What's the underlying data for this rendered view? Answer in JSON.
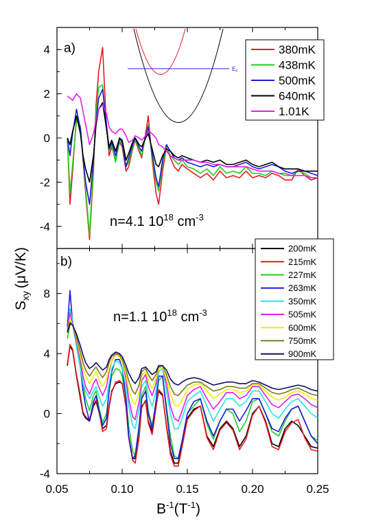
{
  "figure": {
    "ylabel_main": "S",
    "ylabel_sub": "xy",
    "ylabel_unit": "(μV/K)",
    "xlabel_main": "B",
    "xlabel_sup": "-1",
    "xlabel_unit_pre": "(T",
    "xlabel_unit_sup": "-1",
    "xlabel_unit_post": ")",
    "x_ticks": [
      "0.05",
      "0.10",
      "0.15",
      "0.20",
      "0.25"
    ]
  },
  "chart_data": [
    {
      "type": "line",
      "panel_label": "a)",
      "annotation": {
        "prefix": "n=4.1 10",
        "sup": "18",
        "unit": " cm",
        "unit_sup": "-3"
      },
      "inset": {
        "label": "E",
        "label_sub": "F"
      },
      "xlim": [
        0.05,
        0.25
      ],
      "ylim": [
        -5,
        5
      ],
      "y_ticks": [
        "-4",
        "-2",
        "0",
        "2",
        "4"
      ],
      "x": [
        0.058,
        0.06,
        0.062,
        0.065,
        0.068,
        0.07,
        0.072,
        0.075,
        0.078,
        0.08,
        0.082,
        0.085,
        0.088,
        0.09,
        0.092,
        0.095,
        0.098,
        0.1,
        0.103,
        0.105,
        0.108,
        0.11,
        0.113,
        0.115,
        0.118,
        0.12,
        0.123,
        0.126,
        0.128,
        0.131,
        0.134,
        0.137,
        0.14,
        0.143,
        0.146,
        0.15,
        0.155,
        0.16,
        0.165,
        0.17,
        0.175,
        0.18,
        0.185,
        0.19,
        0.195,
        0.2,
        0.205,
        0.21,
        0.215,
        0.22,
        0.225,
        0.23,
        0.235,
        0.24,
        0.245,
        0.25
      ],
      "series": [
        {
          "name": "380mK",
          "color": "#e8191e",
          "values": [
            0.0,
            -3.0,
            -1.5,
            1.0,
            0.5,
            -1.0,
            -2.5,
            -4.6,
            -1.5,
            1.5,
            3.0,
            4.1,
            0.5,
            -0.8,
            -0.4,
            -1.0,
            -0.2,
            -0.4,
            -1.5,
            -1.3,
            -0.5,
            -0.1,
            -0.6,
            -0.9,
            0.2,
            1.0,
            -1.0,
            -2.5,
            -3.0,
            -1.5,
            -0.4,
            -0.9,
            -1.3,
            -1.5,
            -1.2,
            -1.4,
            -1.6,
            -1.8,
            -1.6,
            -1.9,
            -1.5,
            -1.8,
            -1.7,
            -1.8,
            -1.5,
            -1.8,
            -1.7,
            -1.8,
            -1.6,
            -1.7,
            -1.9,
            -1.9,
            -1.4,
            -1.7,
            -1.9,
            -1.8
          ]
        },
        {
          "name": "438mK",
          "color": "#22cc22",
          "values": [
            0.0,
            -2.5,
            -1.2,
            0.8,
            0.5,
            -0.9,
            -2.3,
            -4.4,
            -1.2,
            1.2,
            2.3,
            2.4,
            0.5,
            -0.6,
            -0.3,
            -1.1,
            -0.1,
            -0.3,
            -1.3,
            -1.1,
            -0.4,
            -0.1,
            -0.5,
            -0.8,
            0.1,
            0.6,
            -0.9,
            -2.0,
            -2.4,
            -1.2,
            -0.4,
            -0.8,
            -1.0,
            -1.2,
            -1.0,
            -1.3,
            -1.4,
            -1.6,
            -1.4,
            -1.7,
            -1.3,
            -1.6,
            -1.5,
            -1.6,
            -1.3,
            -1.6,
            -1.6,
            -1.7,
            -1.5,
            -1.6,
            -1.7,
            -1.7,
            -1.5,
            -1.6,
            -1.8,
            -1.8
          ]
        },
        {
          "name": "500mK",
          "color": "#1a1ad9",
          "values": [
            0.0,
            -0.8,
            0.2,
            1.3,
            0.4,
            -0.9,
            -2.0,
            -3.0,
            -1.0,
            0.8,
            1.8,
            2.2,
            0.6,
            -0.5,
            -0.2,
            -0.8,
            0.0,
            -0.2,
            -1.3,
            -0.9,
            -0.3,
            0.0,
            -0.4,
            -0.6,
            0.1,
            0.5,
            -0.7,
            -1.8,
            -2.2,
            -1.0,
            -0.3,
            -0.6,
            -0.9,
            -1.0,
            -0.9,
            -1.1,
            -1.2,
            -1.3,
            -1.2,
            -1.3,
            -1.2,
            -1.3,
            -1.3,
            -1.2,
            -1.1,
            -1.3,
            -1.4,
            -1.3,
            -1.2,
            -1.3,
            -1.5,
            -1.6,
            -1.5,
            -1.5,
            -1.6,
            -1.7
          ]
        },
        {
          "name": "640mK",
          "color": "#000000",
          "values": [
            0.0,
            -0.3,
            0.3,
            1.0,
            0.2,
            -0.8,
            -1.4,
            -2.0,
            -0.8,
            0.6,
            1.3,
            1.6,
            0.4,
            -0.4,
            -0.1,
            -0.6,
            0.0,
            -0.1,
            -1.0,
            -0.7,
            -0.2,
            0.0,
            -0.3,
            -0.4,
            0.0,
            0.2,
            -0.5,
            -1.2,
            -1.3,
            -0.8,
            -0.5,
            -0.6,
            -0.8,
            -0.9,
            -0.8,
            -0.9,
            -1.0,
            -1.1,
            -1.0,
            -1.1,
            -1.0,
            -1.2,
            -1.2,
            -1.1,
            -1.0,
            -1.2,
            -1.3,
            -1.2,
            -1.1,
            -1.3,
            -1.4,
            -1.4,
            -1.4,
            -1.5,
            -1.5,
            -1.5
          ]
        },
        {
          "name": "1.01K",
          "color": "#e11fe1",
          "values": [
            1.9,
            1.8,
            1.7,
            2.0,
            1.8,
            1.2,
            0.6,
            -0.3,
            0.2,
            0.8,
            1.3,
            1.5,
            1.1,
            0.5,
            0.3,
            0.2,
            0.4,
            0.4,
            0.1,
            -0.2,
            -0.1,
            0.1,
            0.0,
            -0.1,
            0.1,
            0.3,
            0.2,
            0.0,
            -0.3,
            -0.4,
            -0.6,
            -0.8,
            -0.9,
            -1.0,
            -1.0,
            -1.0,
            -1.0,
            -1.1,
            -1.1,
            -1.2,
            -1.2,
            -1.3,
            -1.3,
            -1.3,
            -1.3,
            -1.4,
            -1.5,
            -1.5,
            -1.5,
            -1.6,
            -1.6,
            -1.7,
            -1.7,
            -1.7,
            -1.8,
            -1.8
          ]
        }
      ]
    },
    {
      "type": "line",
      "panel_label": "b)",
      "annotation": {
        "prefix": "n=1.1 10",
        "sup": "18",
        "unit": " cm",
        "unit_sup": "-3"
      },
      "xlim": [
        0.05,
        0.25
      ],
      "ylim": [
        -4,
        11
      ],
      "y_ticks": [
        "-4",
        "0",
        "4",
        "8"
      ],
      "x": [
        0.058,
        0.06,
        0.062,
        0.065,
        0.068,
        0.07,
        0.072,
        0.075,
        0.078,
        0.08,
        0.082,
        0.085,
        0.088,
        0.09,
        0.092,
        0.095,
        0.098,
        0.1,
        0.103,
        0.105,
        0.108,
        0.11,
        0.113,
        0.115,
        0.118,
        0.12,
        0.123,
        0.126,
        0.128,
        0.131,
        0.134,
        0.137,
        0.14,
        0.143,
        0.146,
        0.15,
        0.155,
        0.16,
        0.165,
        0.17,
        0.175,
        0.18,
        0.185,
        0.19,
        0.195,
        0.2,
        0.205,
        0.21,
        0.215,
        0.22,
        0.225,
        0.23,
        0.235,
        0.24,
        0.245,
        0.25
      ],
      "series": [
        {
          "name": "200mK",
          "color": "#000000",
          "values": [
            3.2,
            4.5,
            4.2,
            2.5,
            1.0,
            0.0,
            -0.3,
            -0.5,
            0.5,
            0.8,
            0.2,
            -1.0,
            -0.8,
            0.5,
            1.5,
            2.0,
            2.1,
            2.0,
            0.5,
            -1.5,
            -3.0,
            -3.0,
            -1.5,
            0.5,
            0.8,
            -0.5,
            -1.2,
            0.5,
            1.5,
            1.2,
            -0.8,
            -2.5,
            -3.3,
            -3.3,
            -2.0,
            -0.3,
            0.3,
            0.5,
            -1.5,
            -2.2,
            -1.0,
            -0.5,
            -1.0,
            -2.2,
            -1.5,
            0.0,
            0.5,
            -0.5,
            -2.0,
            -2.2,
            -1.0,
            -0.5,
            -0.8,
            -1.5,
            -2.2,
            -2.3
          ]
        },
        {
          "name": "215mK",
          "color": "#e8191e",
          "values": [
            3.3,
            4.6,
            4.3,
            2.6,
            1.2,
            0.1,
            -0.2,
            -0.4,
            0.6,
            0.9,
            0.3,
            -1.2,
            -1.0,
            0.4,
            1.4,
            2.1,
            2.2,
            2.0,
            0.4,
            -1.6,
            -3.1,
            -3.3,
            -1.6,
            0.4,
            0.9,
            -0.6,
            -1.4,
            0.4,
            1.6,
            1.3,
            -0.9,
            -2.7,
            -3.5,
            -3.5,
            -2.2,
            -0.4,
            0.2,
            0.5,
            -1.6,
            -2.4,
            -1.1,
            -0.6,
            -1.1,
            -2.4,
            -1.7,
            -0.1,
            0.5,
            -0.6,
            -2.2,
            -2.4,
            -1.2,
            -0.6,
            -0.4,
            -1.6,
            -2.4,
            -2.5
          ]
        },
        {
          "name": "227mK",
          "color": "#22cc22",
          "values": [
            5.0,
            5.9,
            6.0,
            5.0,
            3.5,
            2.0,
            1.0,
            0.2,
            1.2,
            1.5,
            0.5,
            -0.6,
            0.0,
            1.5,
            2.5,
            3.0,
            2.9,
            2.5,
            1.0,
            -0.8,
            -2.5,
            -2.8,
            -1.0,
            1.2,
            1.8,
            0.2,
            -0.8,
            0.8,
            2.2,
            2.5,
            0.5,
            -1.5,
            -2.8,
            -3.0,
            -1.8,
            0.0,
            0.5,
            1.0,
            -0.7,
            -1.7,
            -0.5,
            0.3,
            0.0,
            -1.2,
            -0.5,
            0.8,
            1.0,
            0.0,
            -1.2,
            -1.5,
            -0.5,
            0.3,
            0.5,
            -0.5,
            -1.5,
            -1.8
          ]
        },
        {
          "name": "263mK",
          "color": "#1a1ad9",
          "values": [
            5.8,
            8.2,
            6.0,
            4.5,
            3.0,
            1.5,
            0.5,
            -0.5,
            0.8,
            1.2,
            0.3,
            -0.8,
            -0.3,
            1.5,
            2.8,
            3.6,
            3.6,
            3.0,
            1.0,
            -1.5,
            -3.0,
            -2.8,
            -0.8,
            1.0,
            1.5,
            0.0,
            -1.0,
            0.8,
            2.5,
            2.5,
            0.2,
            -2.0,
            -3.0,
            -3.0,
            -1.8,
            0.0,
            0.8,
            1.0,
            -0.5,
            -1.5,
            -0.5,
            0.3,
            0.3,
            -0.5,
            0.2,
            1.0,
            1.0,
            0.0,
            -1.0,
            -1.2,
            -0.3,
            0.3,
            0.5,
            -0.5,
            -1.5,
            -2.0
          ]
        },
        {
          "name": "350mK",
          "color": "#22e5e5",
          "values": [
            5.5,
            7.0,
            6.2,
            4.5,
            3.0,
            2.0,
            1.5,
            1.0,
            1.5,
            1.8,
            1.2,
            0.5,
            1.0,
            2.0,
            3.0,
            3.5,
            3.4,
            3.0,
            1.8,
            0.5,
            -0.8,
            -1.0,
            0.3,
            1.8,
            2.2,
            1.2,
            0.5,
            1.5,
            2.8,
            3.0,
            1.5,
            0.0,
            -1.0,
            -1.0,
            -0.3,
            0.8,
            1.2,
            1.5,
            0.5,
            -0.5,
            0.3,
            1.0,
            1.0,
            0.5,
            0.8,
            1.5,
            1.5,
            0.8,
            0.0,
            -0.3,
            0.3,
            0.8,
            1.0,
            0.5,
            0.0,
            -0.3
          ]
        },
        {
          "name": "505mK",
          "color": "#e11fe1",
          "values": [
            5.6,
            6.7,
            6.0,
            4.8,
            3.5,
            2.5,
            1.8,
            1.3,
            2.0,
            2.3,
            1.8,
            1.2,
            1.8,
            2.8,
            3.5,
            4.0,
            3.9,
            3.5,
            2.3,
            1.0,
            -0.2,
            -0.4,
            0.8,
            2.2,
            2.6,
            1.8,
            1.2,
            2.0,
            3.0,
            3.1,
            2.0,
            0.5,
            -0.3,
            -0.5,
            0.2,
            1.2,
            1.6,
            1.8,
            1.0,
            0.3,
            0.8,
            1.4,
            1.4,
            1.0,
            1.2,
            1.8,
            1.8,
            1.2,
            0.6,
            0.4,
            0.8,
            1.2,
            1.3,
            1.0,
            0.6,
            0.4
          ]
        },
        {
          "name": "600mK",
          "color": "#f0f000",
          "values": [
            5.4,
            6.3,
            5.9,
            5.0,
            3.8,
            3.0,
            2.5,
            2.0,
            2.5,
            2.8,
            2.3,
            1.8,
            2.3,
            3.0,
            3.5,
            3.9,
            3.8,
            3.5,
            2.6,
            1.6,
            0.8,
            0.6,
            1.4,
            2.5,
            2.8,
            2.2,
            1.7,
            2.3,
            3.0,
            3.1,
            2.3,
            1.3,
            0.6,
            0.5,
            0.9,
            1.6,
            1.9,
            2.0,
            1.5,
            1.0,
            1.3,
            1.6,
            1.6,
            1.4,
            1.5,
            1.9,
            1.9,
            1.5,
            1.1,
            0.9,
            1.1,
            1.4,
            1.5,
            1.3,
            1.0,
            0.9
          ]
        },
        {
          "name": "750mK",
          "color": "#7a7a1a",
          "values": [
            5.5,
            6.1,
            5.9,
            5.1,
            4.1,
            3.4,
            2.9,
            2.5,
            2.9,
            3.1,
            2.8,
            2.4,
            2.8,
            3.4,
            3.8,
            4.0,
            3.9,
            3.6,
            2.9,
            2.2,
            1.5,
            1.3,
            1.9,
            2.8,
            3.0,
            2.6,
            2.2,
            2.6,
            3.1,
            3.2,
            2.6,
            1.8,
            1.3,
            1.2,
            1.5,
            1.9,
            2.1,
            2.1,
            1.8,
            1.5,
            1.6,
            1.8,
            1.8,
            1.7,
            1.7,
            2.0,
            2.0,
            1.7,
            1.4,
            1.3,
            1.4,
            1.6,
            1.7,
            1.5,
            1.3,
            1.2
          ]
        },
        {
          "name": "900mK",
          "color": "#0d0d66",
          "values": [
            5.4,
            6.0,
            5.9,
            5.3,
            4.5,
            3.9,
            3.4,
            3.0,
            3.2,
            3.4,
            3.2,
            2.9,
            3.1,
            3.6,
            3.9,
            4.1,
            4.0,
            3.8,
            3.2,
            2.7,
            2.2,
            2.0,
            2.4,
            3.0,
            3.1,
            2.9,
            2.6,
            2.8,
            3.2,
            3.2,
            2.9,
            2.3,
            2.0,
            1.9,
            2.1,
            2.3,
            2.4,
            2.3,
            2.1,
            1.9,
            2.0,
            2.1,
            2.1,
            2.0,
            2.0,
            2.2,
            2.1,
            1.9,
            1.7,
            1.6,
            1.7,
            1.8,
            1.9,
            1.8,
            1.6,
            1.5
          ]
        }
      ]
    }
  ]
}
